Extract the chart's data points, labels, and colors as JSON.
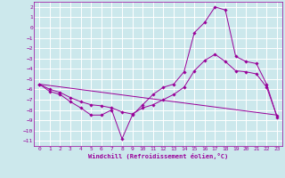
{
  "xlabel": "Windchill (Refroidissement éolien,°C)",
  "bg_color": "#cce8ec",
  "grid_color": "#ffffff",
  "line_color": "#990099",
  "xlim": [
    -0.5,
    23.5
  ],
  "ylim": [
    -11.5,
    2.5
  ],
  "xticks": [
    0,
    1,
    2,
    3,
    4,
    5,
    6,
    7,
    8,
    9,
    10,
    11,
    12,
    13,
    14,
    15,
    16,
    17,
    18,
    19,
    20,
    21,
    22,
    23
  ],
  "yticks": [
    2,
    1,
    0,
    -1,
    -2,
    -3,
    -4,
    -5,
    -6,
    -7,
    -8,
    -9,
    -10,
    -11
  ],
  "series1_x": [
    0,
    1,
    2,
    3,
    4,
    5,
    6,
    7,
    8,
    9,
    10,
    11,
    12,
    13,
    14,
    15,
    16,
    17,
    18,
    19,
    20,
    21,
    22,
    23
  ],
  "series1_y": [
    -5.5,
    -6.2,
    -6.5,
    -7.2,
    -7.8,
    -8.5,
    -8.5,
    -8.0,
    -10.8,
    -8.5,
    -7.5,
    -6.5,
    -5.8,
    -5.5,
    -4.3,
    -0.5,
    0.5,
    2.0,
    1.7,
    -2.8,
    -3.3,
    -3.5,
    -5.5,
    -8.7
  ],
  "series2_x": [
    0,
    1,
    2,
    3,
    4,
    5,
    6,
    7,
    8,
    9,
    10,
    11,
    12,
    13,
    14,
    15,
    16,
    17,
    18,
    19,
    20,
    21,
    22,
    23
  ],
  "series2_y": [
    -5.5,
    -6.0,
    -6.3,
    -6.8,
    -7.2,
    -7.5,
    -7.6,
    -7.8,
    -8.2,
    -8.4,
    -7.8,
    -7.5,
    -7.0,
    -6.5,
    -5.8,
    -4.2,
    -3.2,
    -2.6,
    -3.3,
    -4.2,
    -4.3,
    -4.5,
    -5.8,
    -8.6
  ],
  "series3_x": [
    0,
    23
  ],
  "series3_y": [
    -5.5,
    -8.5
  ]
}
